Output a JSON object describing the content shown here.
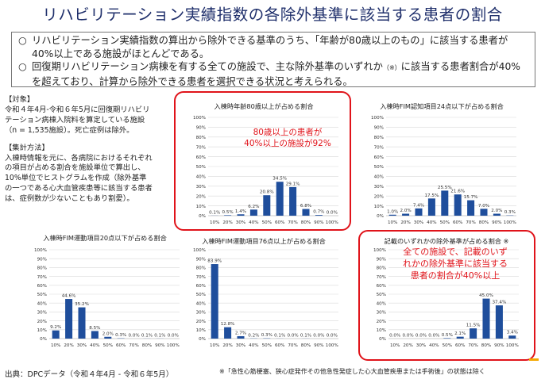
{
  "title": "リハビリテーション実績指数の各除外基準に該当する患者の割合",
  "summary": {
    "bullet1": "リハビリテーション実績指数の算出から除外できる基準のうち、「年齢が80歳以上のもの」に該当する患者が40%以上である施設がほとんどである。",
    "bullet2_part1": "回復期リハビリテーション病棟を有する全ての施設で、主な除外基準のいずれか",
    "bullet2_note": "（※）",
    "bullet2_part2": "に該当する患者割合が40%を超えており、計算から除外できる患者を選択できる状況と考えられる。"
  },
  "notes": {
    "target_heading": "【対象】",
    "target_text": "令和４年4月‐令和６年5月に回復期リハビリテーション病棟入院料を算定している施設（n = 1,535施設）。死亡症例は除外。",
    "method_heading": "【集計方法】",
    "method_text": "入棟時情報を元に、各病院におけるそれぞれの項目が占める割合を施設単位で算出し、10%単位でヒストグラムを作成（除外基準の一つである心大血管疾患等に該当する患者は、症例数が少ないこともあり割愛）。"
  },
  "callouts": {
    "age": "80歳以上の患者が\n40%以上の施設が92%",
    "any": "全ての施設で、記載のいず\nれかの除外基準に該当する\n患者の割合が40%以上"
  },
  "footer": {
    "source": "出典：DPCデータ（令和４年4月 ‐ 令和６年5月）",
    "note": "※「急性心筋梗塞、狭心症発作その他急性発症した心大血管疾患または手術後」の状態は除く"
  },
  "colors": {
    "bar": "#1f4e9c",
    "accent": "#e0131a",
    "title": "#1f2f6b",
    "grid": "#d9d9d9"
  },
  "chart_data": [
    {
      "type": "bar",
      "title": "入棟時年齢80歳以上が占める割合",
      "categories": [
        "10%",
        "20%",
        "30%",
        "40%",
        "50%",
        "60%",
        "70%",
        "80%",
        "90%",
        "100%"
      ],
      "values": [
        0.1,
        0.5,
        1.4,
        6.2,
        20.8,
        34.5,
        29.1,
        6.8,
        0.7,
        0.0
      ],
      "data_labels": [
        "0.1%",
        "0.5%",
        "1.4%",
        "6.2%",
        "20.8%",
        "34.5%",
        "29.1%",
        "6.8%",
        "0.7%",
        "0.0%"
      ],
      "y_ticks": [
        "0%",
        "10%",
        "20%",
        "30%",
        "40%",
        "50%",
        "60%",
        "70%",
        "80%",
        "90%",
        "100%"
      ],
      "ylim": [
        0,
        100
      ]
    },
    {
      "type": "bar",
      "title": "入棟時FIM認知項目24点以下が占める割合",
      "categories": [
        "10%",
        "20%",
        "30%",
        "40%",
        "50%",
        "60%",
        "70%",
        "80%",
        "90%",
        "100%"
      ],
      "values": [
        1.0,
        2.0,
        7.4,
        17.5,
        25.5,
        21.6,
        15.7,
        7.0,
        2.0,
        0.3
      ],
      "data_labels": [
        "1.0%",
        "2.0%",
        "7.4%",
        "17.5%",
        "25.5%",
        "21.6%",
        "15.7%",
        "7.0%",
        "2.0%",
        "0.3%"
      ],
      "y_ticks": [
        "0%",
        "10%",
        "20%",
        "30%",
        "40%",
        "50%",
        "60%",
        "70%",
        "80%",
        "90%",
        "100%"
      ],
      "ylim": [
        0,
        100
      ]
    },
    {
      "type": "bar",
      "title": "入棟時FIM運動項目20点以下が占める割合",
      "categories": [
        "10%",
        "20%",
        "30%",
        "40%",
        "50%",
        "60%",
        "70%",
        "80%",
        "90%",
        "100%"
      ],
      "values": [
        9.2,
        44.6,
        35.2,
        8.5,
        2.0,
        0.3,
        0.0,
        0.1,
        0.1,
        0.0
      ],
      "data_labels": [
        "9.2%",
        "44.6%",
        "35.2%",
        "8.5%",
        "2.0%",
        "0.3%",
        "0.0%",
        "0.1%",
        "0.1%",
        "0.0%"
      ],
      "y_ticks": [
        "0%",
        "10%",
        "20%",
        "30%",
        "40%",
        "50%",
        "60%",
        "70%",
        "80%",
        "90%",
        "100%"
      ],
      "ylim": [
        0,
        100
      ]
    },
    {
      "type": "bar",
      "title": "入棟時FIM運動項目76点以上が占める割合",
      "categories": [
        "10%",
        "20%",
        "30%",
        "40%",
        "50%",
        "60%",
        "70%",
        "80%",
        "90%",
        "100%"
      ],
      "values": [
        83.9,
        12.8,
        2.7,
        0.2,
        0.3,
        0.1,
        0.0,
        0.1,
        0.0,
        0.0
      ],
      "data_labels": [
        "83.9%",
        "12.8%",
        "2.7%",
        "0.2%",
        "0.3%",
        "0.1%",
        "0.0%",
        "0.1%",
        "0.0%",
        "0.0%"
      ],
      "y_ticks": [
        "0%",
        "10%",
        "20%",
        "30%",
        "40%",
        "50%",
        "60%",
        "70%",
        "80%",
        "90%",
        "100%"
      ],
      "ylim": [
        0,
        100
      ]
    },
    {
      "type": "bar",
      "title": "記載のいずれかの除外基準が占める割合 ※",
      "categories": [
        "10%",
        "20%",
        "30%",
        "40%",
        "50%",
        "60%",
        "70%",
        "80%",
        "90%",
        "100%"
      ],
      "values": [
        0.0,
        0.0,
        0.0,
        0.0,
        0.5,
        2.1,
        11.5,
        45.0,
        37.4,
        3.4
      ],
      "data_labels": [
        "0.0%",
        "0.0%",
        "0.0%",
        "0.0%",
        "0.5%",
        "2.1%",
        "11.5%",
        "45.0%",
        "37.4%",
        "3.4%"
      ],
      "y_ticks": [
        "0%",
        "10%",
        "20%",
        "30%",
        "40%",
        "50%",
        "60%",
        "70%",
        "80%",
        "90%",
        "100%"
      ],
      "ylim": [
        0,
        100
      ]
    }
  ]
}
